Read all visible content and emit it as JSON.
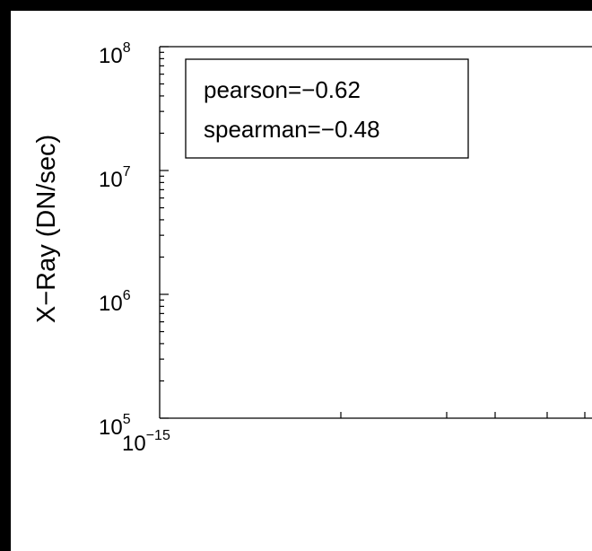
{
  "chart_data": {
    "type": "scatter",
    "title": "",
    "xlabel": "",
    "ylabel": "X−Ray (DN/sec)",
    "xscale": "log",
    "yscale": "log",
    "ylim": [
      100000,
      100000000
    ],
    "x_visible_min": 1e-15,
    "y_ticks": [
      {
        "base": "10",
        "exp": "8"
      },
      {
        "base": "10",
        "exp": "7"
      },
      {
        "base": "10",
        "exp": "6"
      },
      {
        "base": "10",
        "exp": "5"
      }
    ],
    "x_ticks": [
      {
        "base": "10",
        "exp": "−15"
      }
    ],
    "annotation": {
      "lines": [
        "pearson=−0.62",
        "spearman=−0.48"
      ],
      "pearson": -0.62,
      "spearman": -0.48
    },
    "series": [],
    "grid": false,
    "colors": {
      "background": "#ffffff",
      "frame": "#000000",
      "outer": "#000000"
    }
  }
}
